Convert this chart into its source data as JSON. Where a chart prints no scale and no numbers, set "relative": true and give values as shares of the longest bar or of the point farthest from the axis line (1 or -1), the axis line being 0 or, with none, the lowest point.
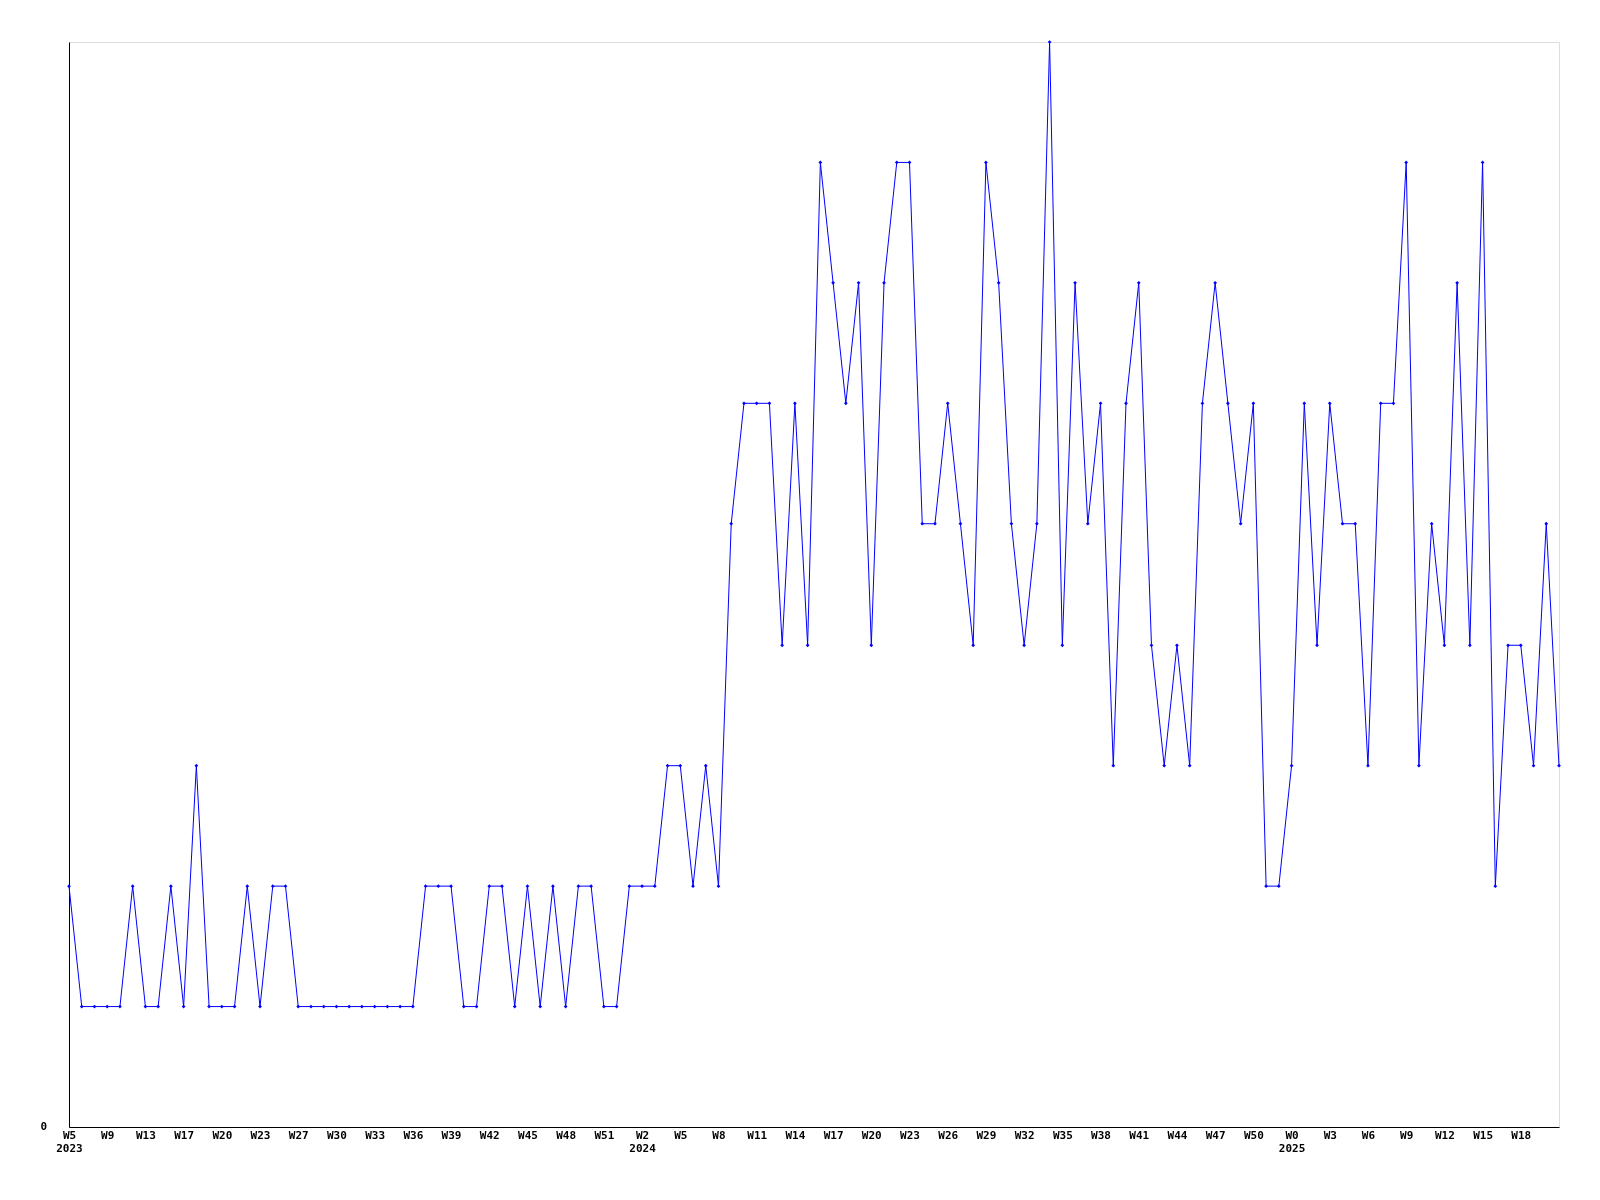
{
  "chart_data": {
    "type": "line",
    "relative": true,
    "marker": "diamond",
    "line_style": "solid",
    "grid": false,
    "legend": false,
    "tick_labels": "x",
    "annotations": [
      "0"
    ],
    "categories": [
      "W5\n2023",
      null,
      null,
      "W9",
      null,
      null,
      "W13",
      null,
      null,
      "W17",
      null,
      null,
      "W20",
      null,
      null,
      "W23",
      null,
      null,
      "W27",
      null,
      null,
      "W30",
      null,
      null,
      "W33",
      null,
      null,
      "W36",
      null,
      null,
      "W39",
      null,
      null,
      "W42",
      null,
      null,
      "W45",
      null,
      null,
      "W48",
      null,
      null,
      "W51",
      null,
      null,
      "W2\n2024",
      null,
      null,
      "W5",
      null,
      null,
      "W8",
      null,
      null,
      "W11",
      null,
      null,
      "W14",
      null,
      null,
      "W17",
      null,
      null,
      "W20",
      null,
      null,
      "W23",
      null,
      null,
      "W26",
      null,
      null,
      "W29",
      null,
      null,
      "W32",
      null,
      null,
      "W35",
      null,
      null,
      "W38",
      null,
      null,
      "W41",
      null,
      null,
      "W44",
      null,
      null,
      "W47",
      null,
      null,
      "W50",
      null,
      null,
      "W0\n2025",
      null,
      null,
      "W3",
      null,
      null,
      "W6",
      null,
      null,
      "W9",
      null,
      null,
      "W12",
      null,
      null,
      "W15",
      null,
      null,
      "W18",
      null,
      null,
      null
    ],
    "series": [
      {
        "color": "#0000ff",
        "values": [
          0.222,
          0.111,
          0.111,
          0.111,
          0.111,
          0.222,
          0.111,
          0.111,
          0.222,
          0.111,
          0.333,
          0.111,
          0.111,
          0.111,
          0.222,
          0.111,
          0.222,
          0.222,
          0.111,
          0.111,
          0.111,
          0.111,
          0.111,
          0.111,
          0.111,
          0.111,
          0.111,
          0.111,
          0.222,
          0.222,
          0.222,
          0.111,
          0.111,
          0.222,
          0.222,
          0.111,
          0.222,
          0.111,
          0.222,
          0.111,
          0.222,
          0.222,
          0.111,
          0.111,
          0.222,
          0.222,
          0.222,
          0.333,
          0.333,
          0.222,
          0.333,
          0.222,
          0.556,
          0.667,
          0.667,
          0.667,
          0.444,
          0.667,
          0.444,
          0.889,
          0.778,
          0.667,
          0.778,
          0.444,
          0.778,
          0.889,
          0.889,
          0.556,
          0.556,
          0.667,
          0.556,
          0.444,
          0.889,
          0.778,
          0.556,
          0.444,
          0.556,
          1,
          0.444,
          0.778,
          0.556,
          0.667,
          0.333,
          0.667,
          0.778,
          0.444,
          0.333,
          0.444,
          0.333,
          0.667,
          0.778,
          0.667,
          0.556,
          0.667,
          0.222,
          0.222,
          0.333,
          0.667,
          0.444,
          0.667,
          0.556,
          0.556,
          0.333,
          0.667,
          0.667,
          0.889,
          0.333,
          0.556,
          0.444,
          0.778,
          0.444,
          0.889,
          0.222,
          0.444,
          0.444,
          0.333,
          0.556,
          0.333
        ]
      }
    ]
  }
}
